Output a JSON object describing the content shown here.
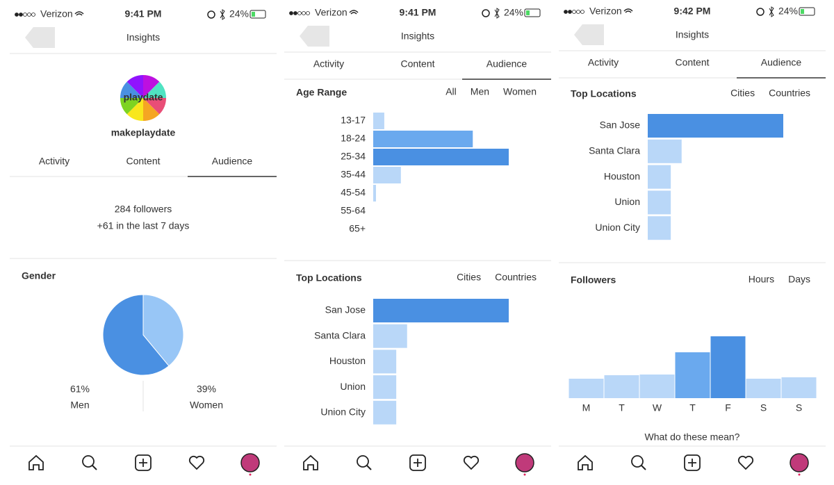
{
  "screens": [
    {
      "status": {
        "carrier": "Verizon",
        "time": "9:41 PM",
        "battery": "24%"
      },
      "title": "Insights",
      "avatar_text": "playdate",
      "username": "makeplaydate",
      "tabs": [
        "Activity",
        "Content",
        "Audience"
      ],
      "active_tab": 2,
      "followers": "284 followers",
      "followers_change": "+61 in the last 7 days",
      "gender": {
        "type": "pie",
        "title": "Gender",
        "categories": [
          "Men",
          "Women"
        ],
        "values": [
          61,
          39
        ],
        "value_labels": [
          "61%",
          "39%"
        ],
        "colors": [
          "#4a90e2",
          "#98c6f6"
        ]
      }
    },
    {
      "status": {
        "carrier": "Verizon",
        "time": "9:41 PM",
        "battery": "24%"
      },
      "title": "Insights",
      "tabs": [
        "Activity",
        "Content",
        "Audience"
      ],
      "active_tab": 2,
      "age_range": {
        "type": "bar",
        "title": "Age Range",
        "filters": [
          "All",
          "Men",
          "Women"
        ],
        "active_filter": 0,
        "categories": [
          "13-17",
          "18-24",
          "25-34",
          "35-44",
          "45-54",
          "55-64",
          "65+"
        ],
        "values": [
          4,
          36,
          49,
          10,
          1,
          0,
          0
        ],
        "colors": [
          "#b9d7f8",
          "#6aa9ee",
          "#4a90e2",
          "#b9d7f8",
          "#b9d7f8",
          "#b9d7f8",
          "#b9d7f8"
        ]
      },
      "top_locations": {
        "type": "bar",
        "title": "Top Locations",
        "filters": [
          "Cities",
          "Countries"
        ],
        "active_filter": 0,
        "categories": [
          "San Jose",
          "Santa Clara",
          "Houston",
          "Union",
          "Union City"
        ],
        "values": [
          100,
          25,
          17,
          17,
          17
        ],
        "colors": [
          "#4a90e2",
          "#b9d7f8",
          "#b9d7f8",
          "#b9d7f8",
          "#b9d7f8"
        ]
      }
    },
    {
      "status": {
        "carrier": "Verizon",
        "time": "9:42 PM",
        "battery": "24%"
      },
      "title": "Insights",
      "tabs": [
        "Activity",
        "Content",
        "Audience"
      ],
      "active_tab": 2,
      "top_locations": {
        "type": "bar",
        "title": "Top Locations",
        "filters": [
          "Cities",
          "Countries"
        ],
        "active_filter": 0,
        "categories": [
          "San Jose",
          "Santa Clara",
          "Houston",
          "Union",
          "Union City"
        ],
        "values": [
          100,
          25,
          17,
          17,
          17
        ],
        "colors": [
          "#4a90e2",
          "#b9d7f8",
          "#b9d7f8",
          "#b9d7f8",
          "#b9d7f8"
        ]
      },
      "followers": {
        "type": "bar",
        "title": "Followers",
        "filters": [
          "Hours",
          "Days"
        ],
        "active_filter": 1,
        "categories": [
          "M",
          "T",
          "W",
          "T",
          "F",
          "S",
          "S"
        ],
        "values": [
          28,
          33,
          34,
          66,
          89,
          28,
          30
        ],
        "colors": [
          "#b9d7f8",
          "#b9d7f8",
          "#b9d7f8",
          "#6aa9ee",
          "#4a90e2",
          "#b9d7f8",
          "#b9d7f8"
        ]
      },
      "help_link": "What do these mean?"
    }
  ]
}
